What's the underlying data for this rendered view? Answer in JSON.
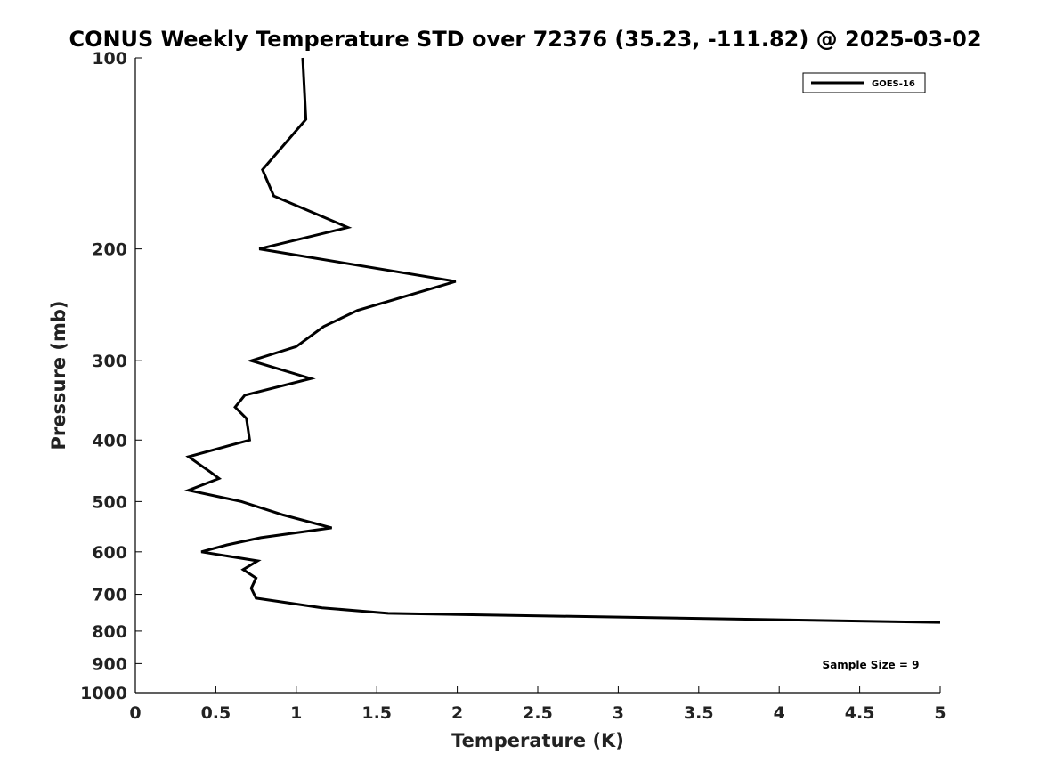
{
  "chart_data": {
    "type": "line",
    "title": "CONUS Weekly Temperature STD over 72376 (35.23, -111.82) @ 2025-03-02",
    "xlabel": "Temperature (K)",
    "ylabel": "Pressure (mb)",
    "xlim": [
      0,
      5
    ],
    "ylim": [
      100,
      1000
    ],
    "yscale": "log",
    "yreversed": true,
    "grid": false,
    "legend_position": "top-right",
    "xticks": [
      0,
      0.5,
      1,
      1.5,
      2,
      2.5,
      3,
      3.5,
      4,
      4.5,
      5
    ],
    "xtick_labels": [
      "0",
      "0.5",
      "1",
      "1.5",
      "2",
      "2.5",
      "3",
      "3.5",
      "4",
      "4.5",
      "5"
    ],
    "yticks": [
      100,
      200,
      300,
      400,
      500,
      600,
      700,
      800,
      900,
      1000
    ],
    "ytick_labels": [
      "100",
      "200",
      "300",
      "400",
      "500",
      "600",
      "700",
      "800",
      "900",
      "1000"
    ],
    "series": [
      {
        "name": "GOES-16",
        "color": "#000000",
        "points": [
          [
            1.04,
            100
          ],
          [
            1.06,
            125
          ],
          [
            0.79,
            150
          ],
          [
            0.86,
            165
          ],
          [
            1.32,
            185
          ],
          [
            0.77,
            200
          ],
          [
            1.99,
            225
          ],
          [
            1.38,
            250
          ],
          [
            1.17,
            265
          ],
          [
            1.0,
            285
          ],
          [
            0.72,
            300
          ],
          [
            1.09,
            320
          ],
          [
            0.68,
            340
          ],
          [
            0.62,
            355
          ],
          [
            0.69,
            370
          ],
          [
            0.71,
            400
          ],
          [
            0.33,
            425
          ],
          [
            0.47,
            450
          ],
          [
            0.52,
            460
          ],
          [
            0.33,
            480
          ],
          [
            0.66,
            500
          ],
          [
            0.92,
            525
          ],
          [
            1.22,
            550
          ],
          [
            0.78,
            570
          ],
          [
            0.57,
            585
          ],
          [
            0.41,
            600
          ],
          [
            0.76,
            620
          ],
          [
            0.67,
            640
          ],
          [
            0.75,
            660
          ],
          [
            0.72,
            685
          ],
          [
            0.75,
            710
          ],
          [
            1.16,
            735
          ],
          [
            1.57,
            750
          ],
          [
            5.0,
            775
          ]
        ]
      }
    ],
    "annotations": [
      {
        "text": "Sample Size = 9",
        "position": "bottom-right"
      }
    ]
  }
}
